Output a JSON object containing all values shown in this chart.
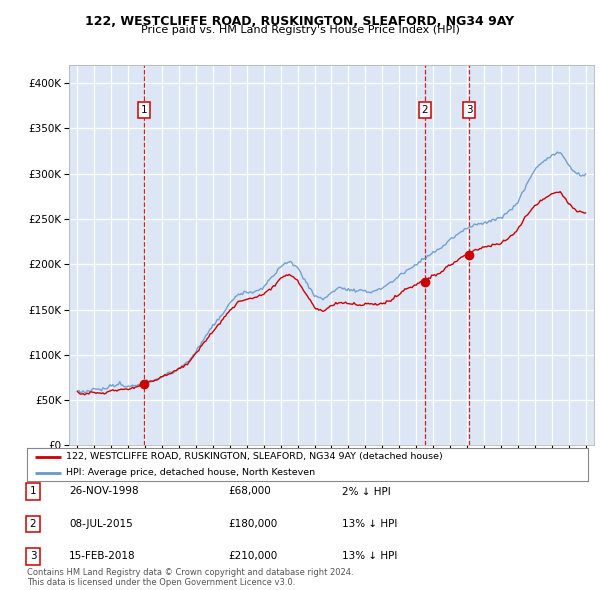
{
  "title1": "122, WESTCLIFFE ROAD, RUSKINGTON, SLEAFORD, NG34 9AY",
  "title2": "Price paid vs. HM Land Registry's House Price Index (HPI)",
  "bg_color": "#dce6f5",
  "grid_color": "#ffffff",
  "line_color_property": "#cc0000",
  "line_color_hpi": "#6699cc",
  "transactions": [
    {
      "date_num": 1998.92,
      "price": 68000,
      "label": "1"
    },
    {
      "date_num": 2015.52,
      "price": 180000,
      "label": "2"
    },
    {
      "date_num": 2018.12,
      "price": 210000,
      "label": "3"
    }
  ],
  "legend_property": "122, WESTCLIFFE ROAD, RUSKINGTON, SLEAFORD, NG34 9AY (detached house)",
  "legend_hpi": "HPI: Average price, detached house, North Kesteven",
  "table_rows": [
    {
      "num": "1",
      "date": "26-NOV-1998",
      "price": "£68,000",
      "info": "2% ↓ HPI"
    },
    {
      "num": "2",
      "date": "08-JUL-2015",
      "price": "£180,000",
      "info": "13% ↓ HPI"
    },
    {
      "num": "3",
      "date": "15-FEB-2018",
      "price": "£210,000",
      "info": "13% ↓ HPI"
    }
  ],
  "footer": "Contains HM Land Registry data © Crown copyright and database right 2024.\nThis data is licensed under the Open Government Licence v3.0.",
  "ylim": [
    0,
    420000
  ],
  "xlim_start": 1994.5,
  "xlim_end": 2025.5,
  "yticks": [
    0,
    50000,
    100000,
    150000,
    200000,
    250000,
    300000,
    350000,
    400000
  ],
  "ytick_labels": [
    "£0",
    "£50K",
    "£100K",
    "£150K",
    "£200K",
    "£250K",
    "£300K",
    "£350K",
    "£400K"
  ],
  "xticks": [
    1995,
    1996,
    1997,
    1998,
    1999,
    2000,
    2001,
    2002,
    2003,
    2004,
    2005,
    2006,
    2007,
    2008,
    2009,
    2010,
    2011,
    2012,
    2013,
    2014,
    2015,
    2016,
    2017,
    2018,
    2019,
    2020,
    2021,
    2022,
    2023,
    2024,
    2025
  ]
}
